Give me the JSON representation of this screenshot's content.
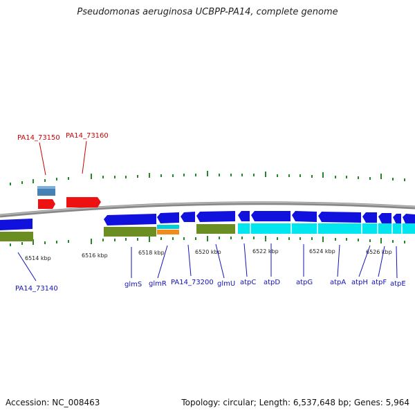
{
  "title": "Pseudomonas aeruginosa UCBPP-PA14, complete genome",
  "footer": {
    "accession": "Accession: NC_008463",
    "stats": "Topology: circular; Length: 6,537,648 bp; Genes: 5,964"
  },
  "scale_labels": [
    "6514 kbp",
    "6516 kbp",
    "6518 kbp",
    "6520 kbp",
    "6522 kbp",
    "6524 kbp",
    "6526 kbp"
  ],
  "genes_top": [
    {
      "label": "PA14_73150",
      "color": "#cc0000"
    },
    {
      "label": "PA14_73160",
      "color": "#cc0000"
    }
  ],
  "genes_bottom": [
    {
      "label": "PA14_73140"
    },
    {
      "label": "glmS"
    },
    {
      "label": "glmR"
    },
    {
      "label": "PA14_73200"
    },
    {
      "label": "glmU"
    },
    {
      "label": "atpC"
    },
    {
      "label": "atpD"
    },
    {
      "label": "atpG"
    },
    {
      "label": "atpA"
    },
    {
      "label": "atpH"
    },
    {
      "label": "atpF"
    },
    {
      "label": "atpE"
    }
  ],
  "colors": {
    "forward_gene": "#ee1111",
    "reverse_gene": "#1111dd",
    "label_blue": "#1111bb",
    "label_red": "#cc0000",
    "tick": "#228822",
    "backbone": "#888888",
    "olive": "#6b8e23",
    "cyan": "#00e5ee",
    "orange": "#f08c1e",
    "steelblue": "#4682b4"
  }
}
